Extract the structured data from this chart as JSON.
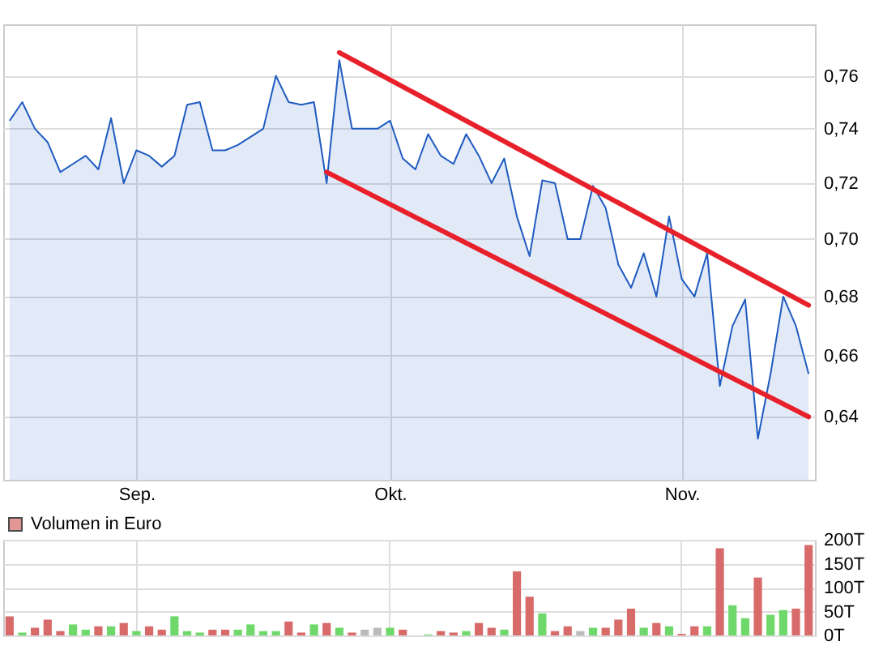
{
  "chart_data": [
    {
      "type": "area",
      "log": "y",
      "grid": true,
      "categories": [
        null,
        null,
        null,
        null,
        null,
        null,
        null,
        null,
        null,
        null,
        "Sep.",
        null,
        null,
        null,
        null,
        null,
        null,
        null,
        null,
        null,
        null,
        null,
        null,
        null,
        null,
        null,
        null,
        null,
        null,
        null,
        "Okt.",
        null,
        null,
        null,
        null,
        null,
        null,
        null,
        null,
        null,
        null,
        null,
        null,
        null,
        null,
        null,
        null,
        null,
        null,
        null,
        null,
        null,
        null,
        "Nov.",
        null,
        null,
        null,
        null,
        null,
        null,
        null,
        null,
        null,
        null
      ],
      "ylim": [
        0.62,
        0.78
      ],
      "yticks": [
        {
          "value": 0.64,
          "label": "0,64"
        },
        {
          "value": 0.66,
          "label": "0,66"
        },
        {
          "value": 0.68,
          "label": "0,68"
        },
        {
          "value": 0.7,
          "label": "0,70"
        },
        {
          "value": 0.72,
          "label": "0,72"
        },
        {
          "value": 0.74,
          "label": "0,74"
        },
        {
          "value": 0.76,
          "label": "0,76"
        }
      ],
      "series": [
        {
          "color": "#1f5bc0",
          "values": [
            0.743,
            0.75,
            0.74,
            0.735,
            0.724,
            0.727,
            0.73,
            0.725,
            0.744,
            0.72,
            0.732,
            0.73,
            0.726,
            0.73,
            0.749,
            0.75,
            0.732,
            0.732,
            0.734,
            0.737,
            0.74,
            0.76,
            0.75,
            0.749,
            0.75,
            0.72,
            0.766,
            0.74,
            0.74,
            0.74,
            0.743,
            0.729,
            0.725,
            0.738,
            0.73,
            0.727,
            0.738,
            0.73,
            0.72,
            0.729,
            0.708,
            0.694,
            0.721,
            0.72,
            0.7,
            0.7,
            0.719,
            0.711,
            0.691,
            0.683,
            0.695,
            0.68,
            0.708,
            0.686,
            0.68,
            0.695,
            0.65,
            0.67,
            0.679,
            0.633,
            0.654,
            0.68,
            0.67,
            0.654
          ]
        },
        {
          "type": "line",
          "color": "#e8202a",
          "values": [
            null,
            null,
            null,
            null,
            null,
            null,
            null,
            null,
            null,
            null,
            null,
            null,
            null,
            null,
            null,
            null,
            null,
            null,
            null,
            null,
            null,
            null,
            null,
            null,
            null,
            null,
            0.769,
            null,
            null,
            null,
            null,
            null,
            null,
            null,
            null,
            null,
            null,
            null,
            null,
            null,
            null,
            null,
            null,
            null,
            null,
            null,
            null,
            null,
            null,
            null,
            null,
            null,
            null,
            null,
            null,
            null,
            null,
            null,
            null,
            null,
            null,
            null,
            null,
            0.677
          ]
        },
        {
          "type": "line",
          "color": "#e8202a",
          "values": [
            null,
            null,
            null,
            null,
            null,
            null,
            null,
            null,
            null,
            null,
            null,
            null,
            null,
            null,
            null,
            null,
            null,
            null,
            null,
            null,
            null,
            null,
            null,
            null,
            null,
            0.724,
            null,
            null,
            null,
            null,
            null,
            null,
            null,
            null,
            null,
            null,
            null,
            null,
            null,
            null,
            null,
            null,
            null,
            null,
            null,
            null,
            null,
            null,
            null,
            null,
            null,
            null,
            null,
            null,
            null,
            null,
            null,
            null,
            null,
            null,
            null,
            null,
            null,
            0.64
          ]
        }
      ]
    },
    {
      "type": "bar",
      "grid": true,
      "tick_labels": "y",
      "legend": "top left",
      "categories": [
        null,
        null,
        null,
        null,
        null,
        null,
        null,
        null,
        null,
        null,
        null,
        null,
        null,
        null,
        null,
        null,
        null,
        null,
        null,
        null,
        null,
        null,
        null,
        null,
        null,
        null,
        null,
        null,
        null,
        null,
        null,
        null,
        null,
        null,
        null,
        null,
        null,
        null,
        null,
        null,
        null,
        null,
        null,
        null,
        null,
        null,
        null,
        null,
        null,
        null,
        null,
        null,
        null,
        null,
        null,
        null,
        null,
        null,
        null,
        null,
        null,
        null,
        null,
        null
      ],
      "ylim": [
        0,
        200
      ],
      "yticks": [
        {
          "value": 0,
          "label": "0T"
        },
        {
          "value": 50,
          "label": "50T"
        },
        {
          "value": 100,
          "label": "100T"
        },
        {
          "value": 150,
          "label": "150T"
        },
        {
          "value": 200,
          "label": "200T"
        }
      ],
      "series": [
        {
          "name": "Volumen in Euro",
          "color": "#d86a6a",
          "values": [
            40,
            6,
            16,
            33,
            9,
            23,
            12,
            19,
            19,
            26,
            9,
            19,
            12,
            40,
            9,
            6,
            12,
            12,
            12,
            23,
            9,
            9,
            29,
            6,
            23,
            26,
            16,
            6,
            12,
            16,
            16,
            12,
            null,
            2,
            9,
            6,
            9,
            26,
            16,
            12,
            134,
            81,
            46,
            9,
            19,
            9,
            16,
            16,
            33,
            56,
            16,
            26,
            19,
            3,
            19,
            19,
            182,
            63,
            36,
            121,
            43,
            53,
            56,
            189
          ],
          "colors": [
            "#d86a6a",
            "#6ed86a",
            "#d86a6a",
            "#d86a6a",
            "#d86a6a",
            "#6ed86a",
            "#6ed86a",
            "#d86a6a",
            "#6ed86a",
            "#d86a6a",
            "#6ed86a",
            "#d86a6a",
            "#d86a6a",
            "#6ed86a",
            "#6ed86a",
            "#6ed86a",
            "#d86a6a",
            "#d86a6a",
            "#6ed86a",
            "#6ed86a",
            "#6ed86a",
            "#6ed86a",
            "#d86a6a",
            "#d86a6a",
            "#6ed86a",
            "#d86a6a",
            "#6ed86a",
            "#d86a6a",
            "#bbbbbb",
            "#bbbbbb",
            "#6ed86a",
            "#d86a6a",
            "#d86a6a",
            "#6ed86a",
            "#d86a6a",
            "#d86a6a",
            "#6ed86a",
            "#d86a6a",
            "#d86a6a",
            "#6ed86a",
            "#d86a6a",
            "#d86a6a",
            "#6ed86a",
            "#d86a6a",
            "#d86a6a",
            "#bbbbbb",
            "#6ed86a",
            "#d86a6a",
            "#d86a6a",
            "#d86a6a",
            "#6ed86a",
            "#d86a6a",
            "#6ed86a",
            "#d86a6a",
            "#d86a6a",
            "#6ed86a",
            "#d86a6a",
            "#6ed86a",
            "#6ed86a",
            "#d86a6a",
            "#6ed86a",
            "#6ed86a",
            "#d86a6a",
            "#d86a6a"
          ]
        }
      ]
    }
  ]
}
